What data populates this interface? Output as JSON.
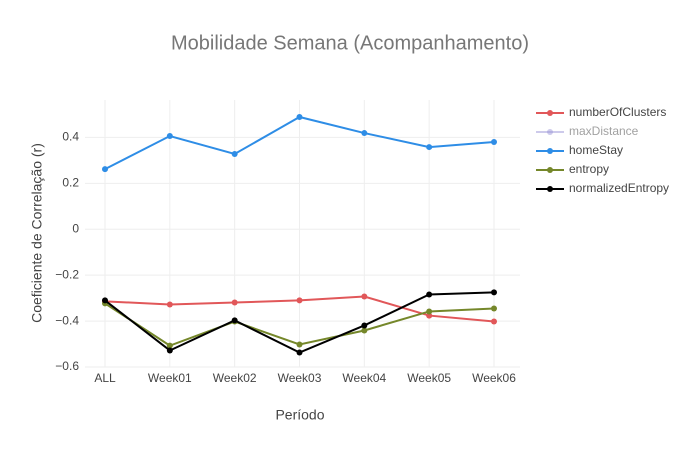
{
  "chart_data": {
    "type": "line",
    "title": "Mobilidade Semana (Acompanhamento)",
    "x_label": "Período",
    "y_label": "Coeficiente de Correlação (r)",
    "categories": [
      "ALL",
      "Week01",
      "Week02",
      "Week03",
      "Week04",
      "Week05",
      "Week06"
    ],
    "series": [
      {
        "name": "numberOfClusters",
        "color": "#e15759",
        "values": [
          -0.314,
          -0.328,
          -0.319,
          -0.31,
          -0.293,
          -0.376,
          -0.402
        ]
      },
      {
        "name": "maxDistance",
        "color": "#9c96d8",
        "visible": "legendonly",
        "values": [
          null,
          null,
          null,
          null,
          null,
          null,
          null
        ]
      },
      {
        "name": "homeStay",
        "color": "#2e8de6",
        "values": [
          0.262,
          0.406,
          0.328,
          0.489,
          0.419,
          0.358,
          0.38
        ]
      },
      {
        "name": "entropy",
        "color": "#75872a",
        "values": [
          -0.323,
          -0.507,
          -0.402,
          -0.502,
          -0.441,
          -0.358,
          -0.345
        ]
      },
      {
        "name": "normalizedEntropy",
        "color": "#000000",
        "values": [
          -0.31,
          -0.528,
          -0.397,
          -0.537,
          -0.419,
          -0.284,
          -0.275
        ]
      }
    ],
    "ylim": [
      -0.6,
      0.563
    ],
    "yticks": [
      {
        "value": -0.6,
        "label": "−0.6"
      },
      {
        "value": -0.4,
        "label": "−0.4"
      },
      {
        "value": -0.2,
        "label": "−0.2"
      },
      0,
      0.2,
      0.4
    ],
    "grid": true,
    "legend": "right"
  }
}
